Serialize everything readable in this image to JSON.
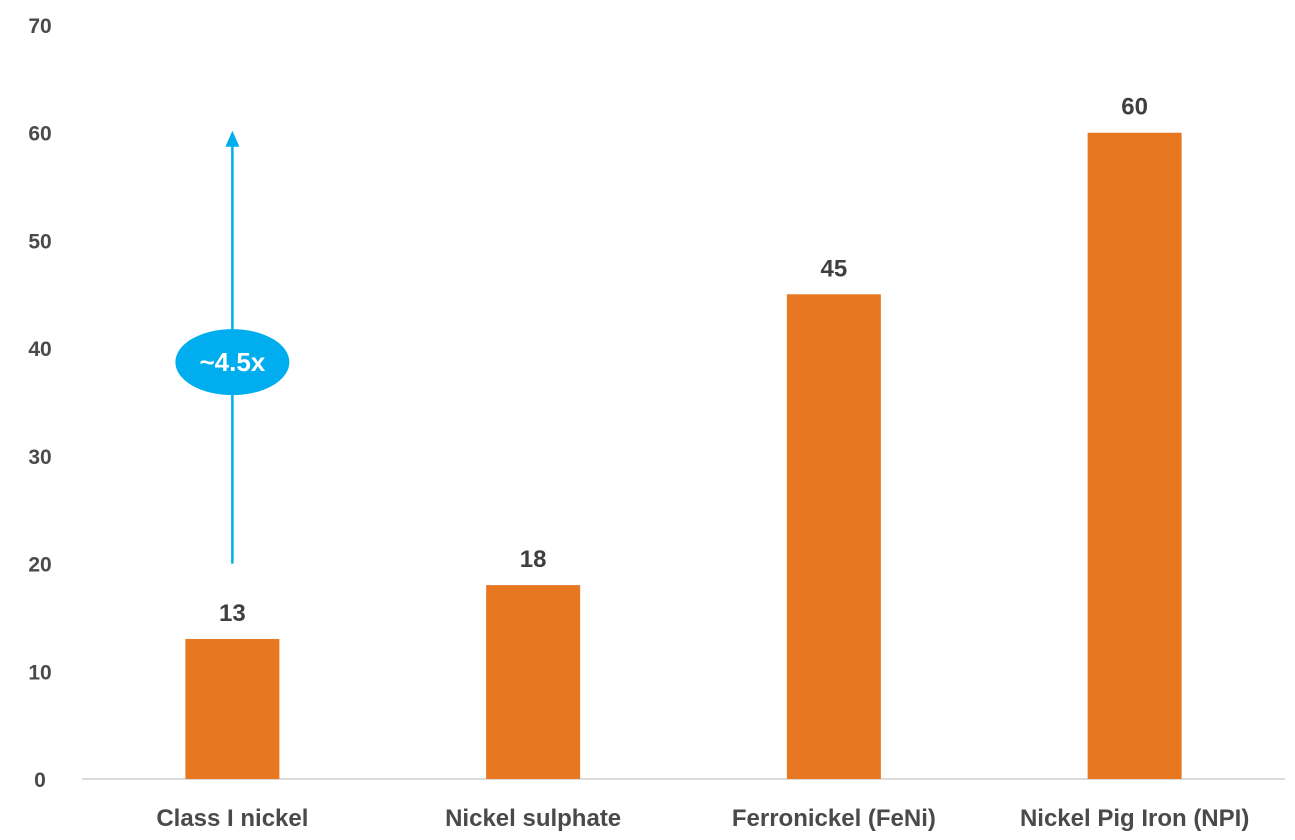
{
  "chart_data": {
    "type": "bar",
    "title": "",
    "xlabel": "",
    "ylabel": "",
    "categories": [
      "Class I nickel",
      "Nickel sulphate",
      "Ferronickel (FeNi)",
      "Nickel Pig Iron (NPI)"
    ],
    "values": [
      13,
      18,
      45,
      60
    ],
    "data_labels": [
      "13",
      "18",
      "45",
      "60"
    ],
    "ylim": [
      0,
      70
    ],
    "yticks": [
      0,
      10,
      20,
      30,
      40,
      50,
      60,
      70
    ],
    "ytick_labels": [
      "0",
      "10",
      "20",
      "30",
      "40",
      "50",
      "60",
      "70"
    ],
    "grid": false,
    "legend": "none",
    "bar_color": "#E87722",
    "annotation": {
      "text": "~4.5x",
      "category": "Class I nickel",
      "from_value": 20,
      "to_value": 60,
      "color": "#00AEEF"
    }
  }
}
